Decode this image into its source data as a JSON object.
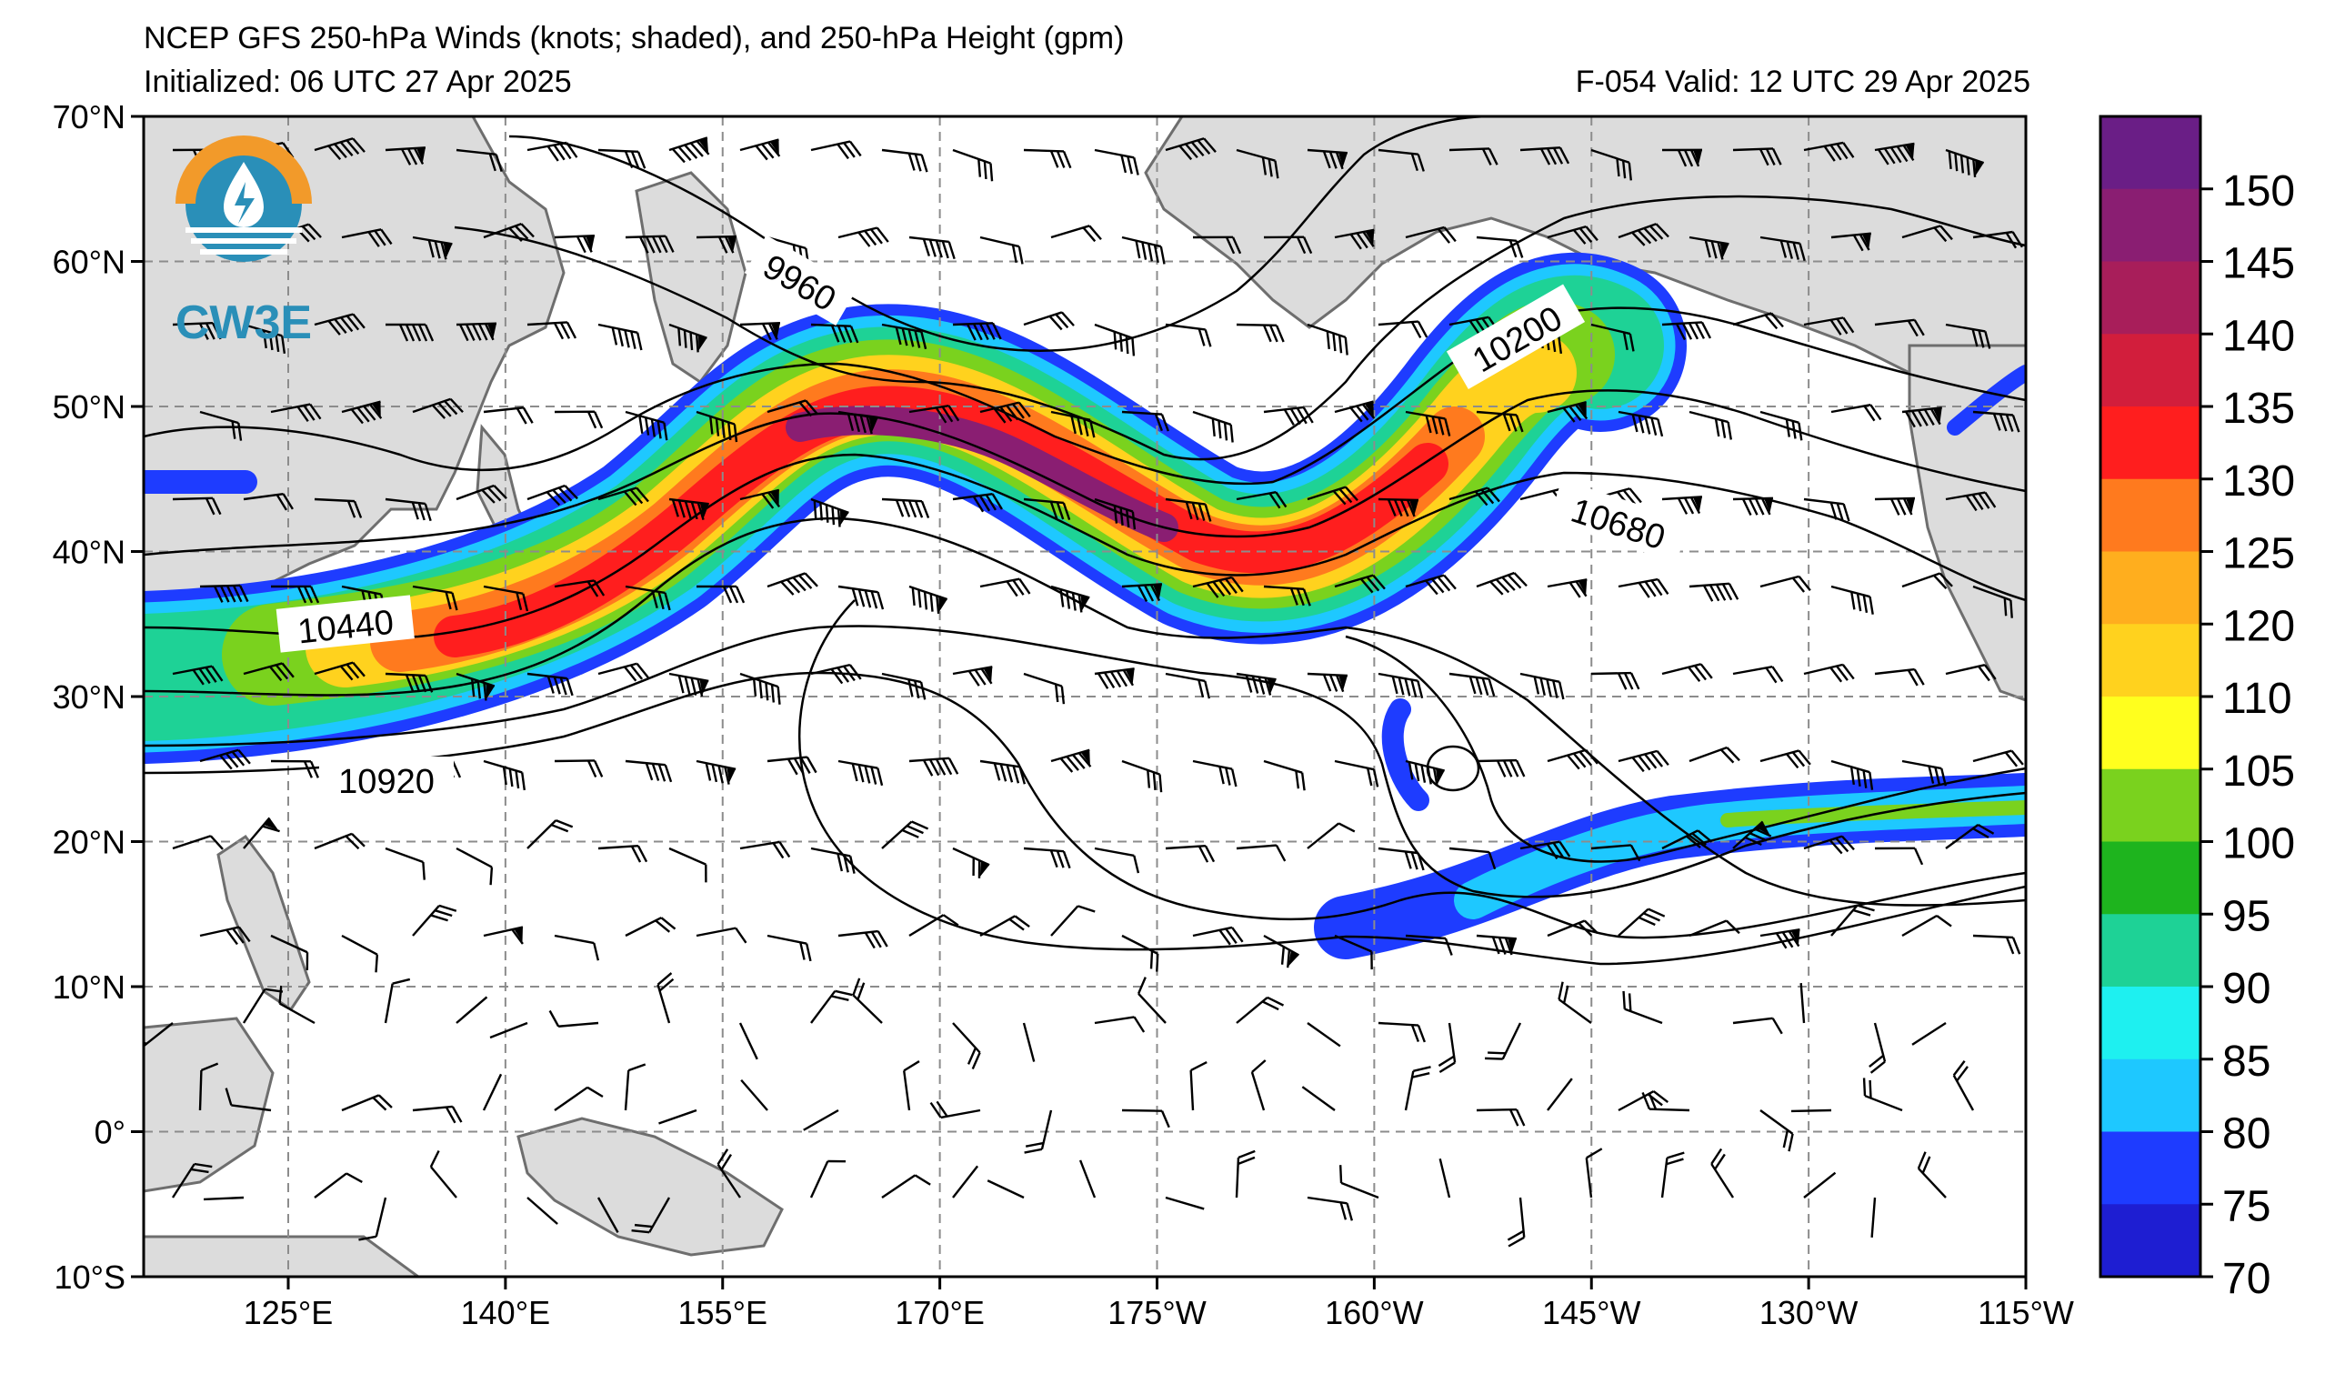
{
  "title": {
    "main": "NCEP GFS 250-hPa Winds (knots; shaded), and 250-hPa Height (gpm)",
    "initialized": "Initialized: 06 UTC 27 Apr 2025",
    "valid": "F-054  Valid: 12 UTC 29 Apr 2025"
  },
  "logo": {
    "text": "CW3E",
    "icon": "droplet-logo-icon"
  },
  "axes": {
    "lat_ticks": [
      "70°N",
      "60°N",
      "50°N",
      "40°N",
      "30°N",
      "20°N",
      "10°N",
      "0°",
      "10°S"
    ],
    "lon_ticks": [
      "125°E",
      "140°E",
      "155°E",
      "170°E",
      "175°W",
      "160°W",
      "145°W",
      "130°W",
      "115°W"
    ]
  },
  "contour_labels": [
    "9960",
    "10200",
    "10440",
    "10680",
    "10920"
  ],
  "colorbar": {
    "labels": [
      "150",
      "145",
      "140",
      "135",
      "130",
      "125",
      "120",
      "110",
      "105",
      "100",
      "95",
      "90",
      "85",
      "80",
      "75",
      "70"
    ],
    "colors": [
      "#6a1e86",
      "#8a1e72",
      "#a81e5a",
      "#d21e3c",
      "#ff1e1e",
      "#ff7a1e",
      "#ffae1e",
      "#ffd21e",
      "#ffff1e",
      "#7ad21e",
      "#1eb41e",
      "#1ed296",
      "#1ef0f0",
      "#1ec8ff",
      "#1e3cff",
      "#1e1ed2"
    ]
  },
  "colors": {
    "land": "#dcdcdc",
    "coast": "#6e6e6e",
    "grid": "#8c8c8c"
  }
}
